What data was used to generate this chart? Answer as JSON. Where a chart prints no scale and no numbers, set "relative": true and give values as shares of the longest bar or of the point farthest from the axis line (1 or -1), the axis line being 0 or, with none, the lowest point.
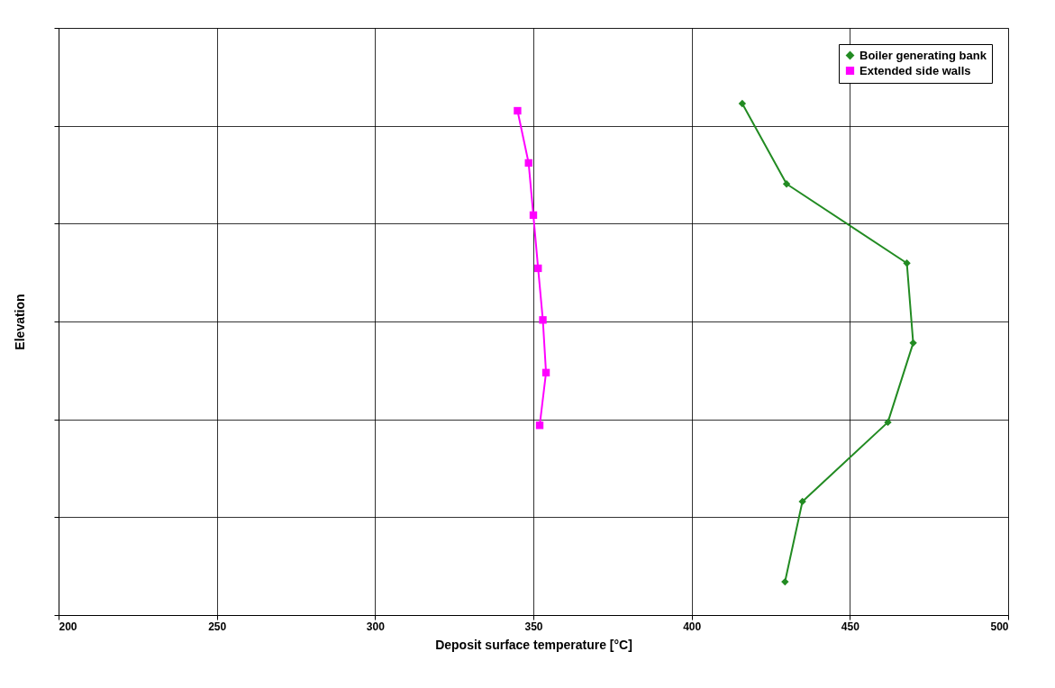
{
  "chart_data": {
    "type": "line",
    "relative": true,
    "xlabel": "Deposit surface temperature [°C]",
    "ylabel": "Elevation",
    "xlim": [
      200,
      500
    ],
    "xticks": [
      200,
      250,
      300,
      350,
      400,
      450,
      500
    ],
    "grid": true,
    "legend": "top right",
    "series": [
      {
        "name": "Boiler generating bank",
        "color": "#228b22",
        "marker": "diamond",
        "x": [
          416,
          430,
          468,
          470,
          462,
          435,
          429.5
        ],
        "values": [
          1,
          0.843,
          0.688,
          0.532,
          0.377,
          0.222,
          0.065
        ]
      },
      {
        "name": "Extended side walls",
        "color": "#ff00ff",
        "marker": "square",
        "x": [
          345,
          348.5,
          350,
          351.5,
          353,
          354,
          352
        ],
        "values": [
          0.986,
          0.884,
          0.782,
          0.678,
          0.577,
          0.474,
          0.371
        ]
      }
    ]
  }
}
